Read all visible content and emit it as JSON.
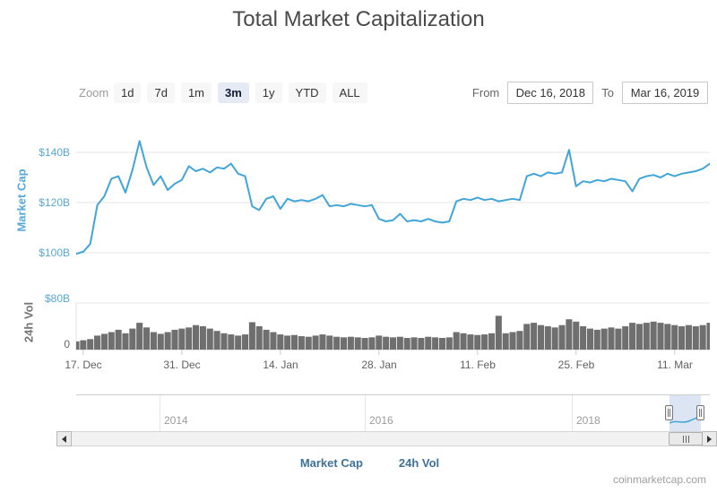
{
  "title": "Total Market Capitalization",
  "toolbar": {
    "zoom_label": "Zoom",
    "buttons": [
      "1d",
      "7d",
      "1m",
      "3m",
      "1y",
      "YTD",
      "ALL"
    ],
    "selected_button": "3m",
    "from_label": "From",
    "from_value": "Dec 16, 2018",
    "to_label": "To",
    "to_value": "Mar 16, 2019"
  },
  "axes": {
    "market_cap_title": "Market Cap",
    "vol_title": "24h Vol"
  },
  "navigator": {
    "year_labels": [
      "2014",
      "2016",
      "2018"
    ]
  },
  "legend": {
    "items": [
      {
        "label": "Market Cap",
        "marker": "line",
        "color": "#57a8d6"
      },
      {
        "label": "24h Vol",
        "marker": "circle",
        "color": "#757575"
      }
    ]
  },
  "watermark": "coinmarketcap.com",
  "chart_data": [
    {
      "type": "line",
      "name": "Market Cap",
      "color": "#42a5d8",
      "x_start": "Dec 16, 2018",
      "x_end": "Mar 16, 2019",
      "x_tick_labels": [
        "17. Dec",
        "31. Dec",
        "14. Jan",
        "28. Jan",
        "11. Feb",
        "25. Feb",
        "11. Mar"
      ],
      "x_tick_days": [
        1,
        15,
        29,
        43,
        57,
        71,
        85
      ],
      "y_ticks": [
        {
          "label": "$100B",
          "value": 100
        },
        {
          "label": "$120B",
          "value": 120
        },
        {
          "label": "$140B",
          "value": 140
        }
      ],
      "ylabel": "Market Cap",
      "unit": "USD billions",
      "values": [
        99.6,
        100.4,
        103.5,
        119.0,
        122.5,
        129.5,
        130.5,
        124.0,
        133.0,
        144.5,
        134.0,
        127.0,
        130.5,
        125.0,
        127.5,
        129.0,
        134.5,
        132.5,
        133.5,
        132.0,
        134.0,
        133.5,
        135.5,
        131.5,
        130.5,
        118.5,
        117.0,
        121.5,
        122.5,
        117.5,
        121.5,
        120.5,
        121.0,
        120.5,
        121.5,
        123.0,
        118.5,
        119.0,
        118.5,
        119.5,
        119.0,
        118.5,
        119.0,
        113.5,
        112.5,
        113.0,
        115.5,
        112.5,
        113.0,
        112.5,
        113.5,
        112.5,
        112.0,
        112.5,
        120.5,
        121.5,
        121.0,
        122.0,
        121.0,
        121.5,
        120.5,
        121.0,
        121.5,
        121.0,
        130.5,
        131.5,
        130.5,
        132.0,
        131.5,
        132.0,
        141.0,
        126.5,
        128.5,
        128.0,
        129.0,
        128.5,
        129.5,
        129.0,
        128.5,
        124.5,
        129.5,
        130.5,
        131.0,
        130.0,
        131.5,
        130.5,
        131.5,
        132.0,
        132.5,
        133.5,
        135.5
      ]
    },
    {
      "type": "column",
      "name": "24h Vol",
      "color": "#6f6f6f",
      "y_ticks": [
        {
          "label": "0",
          "value": 0
        },
        {
          "label": "$80B",
          "value": 80
        }
      ],
      "ylabel": "24h Vol",
      "unit": "USD billions",
      "values": [
        14,
        16,
        18,
        24,
        27,
        30,
        34,
        28,
        36,
        46,
        38,
        30,
        27,
        30,
        34,
        36,
        38,
        42,
        40,
        36,
        32,
        28,
        26,
        24,
        26,
        47,
        40,
        34,
        30,
        26,
        24,
        25,
        23,
        22,
        24,
        26,
        24,
        22,
        21,
        22,
        21,
        20,
        21,
        24,
        22,
        21,
        22,
        20,
        21,
        20,
        22,
        21,
        20,
        21,
        30,
        28,
        26,
        25,
        26,
        28,
        58,
        28,
        30,
        32,
        44,
        46,
        42,
        40,
        38,
        42,
        52,
        48,
        40,
        36,
        34,
        36,
        38,
        36,
        40,
        46,
        44,
        46,
        48,
        46,
        44,
        42,
        40,
        42,
        40,
        42,
        46
      ]
    }
  ]
}
